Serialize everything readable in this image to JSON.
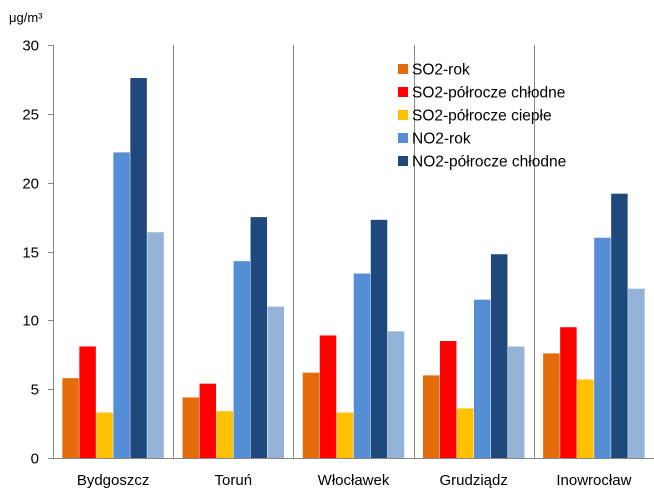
{
  "chart_data": {
    "type": "bar",
    "ylabel": "μg/m³",
    "xlabel": "",
    "ylim": [
      0,
      30
    ],
    "yticks": [
      0,
      5,
      10,
      15,
      20,
      25,
      30
    ],
    "grid": false,
    "category_dividers": true,
    "legend_position": "top-right",
    "categories": [
      "Bydgoszcz",
      "Toruń",
      "Włocławek",
      "Grudziądz",
      "Inowrocław"
    ],
    "series": [
      {
        "name": "SO2-rok",
        "color": "#E46C0A",
        "values": [
          5.8,
          4.4,
          6.2,
          6.0,
          7.6
        ]
      },
      {
        "name": "SO2-półrocze chłodne",
        "color": "#FF0000",
        "values": [
          8.1,
          5.4,
          8.9,
          8.5,
          9.5
        ]
      },
      {
        "name": "SO2-półrocze ciepłe",
        "color": "#FFC000",
        "values": [
          3.3,
          3.4,
          3.3,
          3.6,
          5.7
        ]
      },
      {
        "name": "NO2-rok",
        "color": "#558ED5",
        "values": [
          22.2,
          14.3,
          13.4,
          11.5,
          16.0
        ]
      },
      {
        "name": "NO2-półrocze chłodne",
        "color": "#1F497D",
        "values": [
          27.6,
          17.5,
          17.3,
          14.8,
          19.2
        ]
      },
      {
        "name": "",
        "color": "#95B3D7",
        "values": [
          16.4,
          11.0,
          9.2,
          8.1,
          12.3
        ]
      }
    ]
  }
}
